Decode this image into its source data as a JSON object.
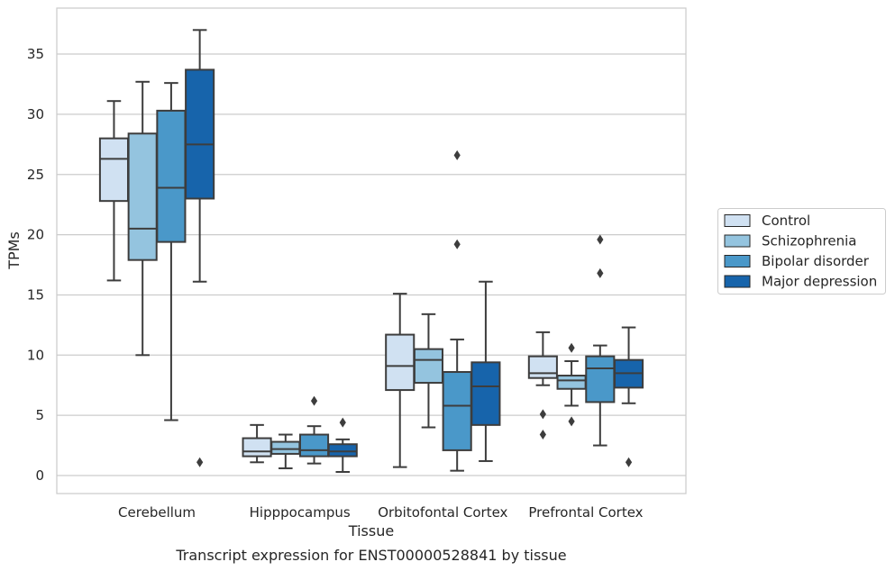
{
  "chart_data": {
    "type": "box",
    "xlabel": "Tissue",
    "ylabel": "TPMs",
    "caption": "Transcript expression for ENST00000528841 by tissue",
    "ylim": [
      -1.5,
      38.5
    ],
    "yticks": [
      0,
      5,
      10,
      15,
      20,
      25,
      30,
      35
    ],
    "grid": "horizontal",
    "legend_position": "right",
    "categories": [
      "Cerebellum",
      "Hipppocampus",
      "Orbitofontal Cortex",
      "Prefrontal Cortex"
    ],
    "series": [
      {
        "name": "Control",
        "color": "#d0e1f2",
        "boxes": [
          {
            "whislo": 16.2,
            "q1": 22.8,
            "med": 26.3,
            "q3": 28.0,
            "whishi": 31.1,
            "fliers": []
          },
          {
            "whislo": 1.1,
            "q1": 1.6,
            "med": 2.0,
            "q3": 3.1,
            "whishi": 4.2,
            "fliers": []
          },
          {
            "whislo": 0.7,
            "q1": 7.1,
            "med": 9.1,
            "q3": 11.7,
            "whishi": 15.1,
            "fliers": []
          },
          {
            "whislo": 7.5,
            "q1": 8.1,
            "med": 8.5,
            "q3": 9.9,
            "whishi": 11.9,
            "fliers": [
              5.1,
              3.4
            ]
          }
        ]
      },
      {
        "name": "Schizophrenia",
        "color": "#94c4df",
        "boxes": [
          {
            "whislo": 10.0,
            "q1": 17.9,
            "med": 20.5,
            "q3": 28.4,
            "whishi": 32.7,
            "fliers": []
          },
          {
            "whislo": 0.6,
            "q1": 1.8,
            "med": 2.2,
            "q3": 2.8,
            "whishi": 3.4,
            "fliers": []
          },
          {
            "whislo": 4.0,
            "q1": 7.7,
            "med": 9.6,
            "q3": 10.5,
            "whishi": 13.4,
            "fliers": []
          },
          {
            "whislo": 5.8,
            "q1": 7.2,
            "med": 7.9,
            "q3": 8.3,
            "whishi": 9.5,
            "fliers": [
              10.6,
              4.5
            ]
          }
        ]
      },
      {
        "name": "Bipolar disorder",
        "color": "#4a98c9",
        "boxes": [
          {
            "whislo": 4.6,
            "q1": 19.4,
            "med": 23.9,
            "q3": 30.3,
            "whishi": 32.6,
            "fliers": []
          },
          {
            "whislo": 1.0,
            "q1": 1.6,
            "med": 2.1,
            "q3": 3.4,
            "whishi": 4.1,
            "fliers": [
              6.2
            ]
          },
          {
            "whislo": 0.4,
            "q1": 2.1,
            "med": 5.8,
            "q3": 8.6,
            "whishi": 11.3,
            "fliers": [
              26.6,
              19.2
            ]
          },
          {
            "whislo": 2.5,
            "q1": 6.1,
            "med": 8.9,
            "q3": 9.9,
            "whishi": 10.8,
            "fliers": [
              19.6,
              16.8
            ]
          }
        ]
      },
      {
        "name": "Major depression",
        "color": "#1764ab",
        "boxes": [
          {
            "whislo": 16.1,
            "q1": 23.0,
            "med": 27.5,
            "q3": 33.7,
            "whishi": 37.0,
            "fliers": [
              1.1
            ]
          },
          {
            "whislo": 0.3,
            "q1": 1.6,
            "med": 2.0,
            "q3": 2.6,
            "whishi": 3.0,
            "fliers": [
              4.4
            ]
          },
          {
            "whislo": 1.2,
            "q1": 4.2,
            "med": 7.4,
            "q3": 9.4,
            "whishi": 16.1,
            "fliers": []
          },
          {
            "whislo": 6.0,
            "q1": 7.3,
            "med": 8.5,
            "q3": 9.6,
            "whishi": 12.3,
            "fliers": [
              1.1
            ]
          }
        ]
      }
    ]
  }
}
